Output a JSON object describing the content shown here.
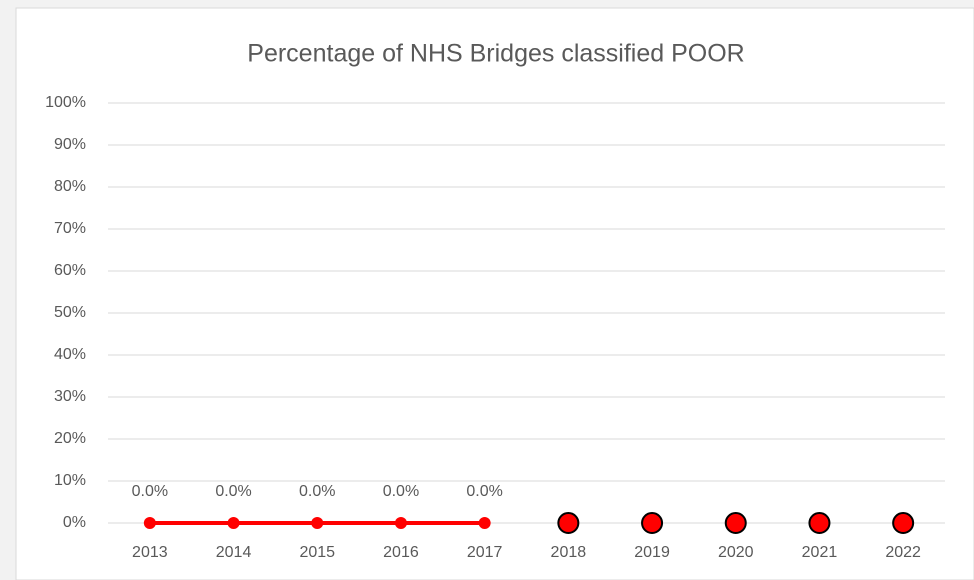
{
  "chart_data": {
    "type": "line",
    "title": "Percentage of NHS Bridges classified POOR",
    "categories": [
      "2013",
      "2014",
      "2015",
      "2016",
      "2017",
      "2018",
      "2019",
      "2020",
      "2021",
      "2022"
    ],
    "series": [
      {
        "color": "#ff0000",
        "style": "line",
        "values": [
          0,
          0,
          0,
          0,
          0,
          null,
          null,
          null,
          null,
          null
        ],
        "value_labels": [
          "0.0%",
          "0.0%",
          "0.0%",
          "0.0%",
          "0.0%",
          null,
          null,
          null,
          null,
          null
        ]
      },
      {
        "color": "#ff0000",
        "style": "markers",
        "values": [
          null,
          null,
          null,
          null,
          null,
          0,
          0,
          0,
          0,
          0
        ]
      }
    ],
    "ylim": [
      0,
      100
    ],
    "yticks": [
      {
        "value": 0,
        "label": "0%"
      },
      {
        "value": 10,
        "label": "10%"
      },
      {
        "value": 20,
        "label": "20%"
      },
      {
        "value": 30,
        "label": "30%"
      },
      {
        "value": 40,
        "label": "40%"
      },
      {
        "value": 50,
        "label": "50%"
      },
      {
        "value": 60,
        "label": "60%"
      },
      {
        "value": 70,
        "label": "70%"
      },
      {
        "value": 80,
        "label": "80%"
      },
      {
        "value": 90,
        "label": "90%"
      },
      {
        "value": 100,
        "label": "100%"
      }
    ],
    "grid": true
  }
}
